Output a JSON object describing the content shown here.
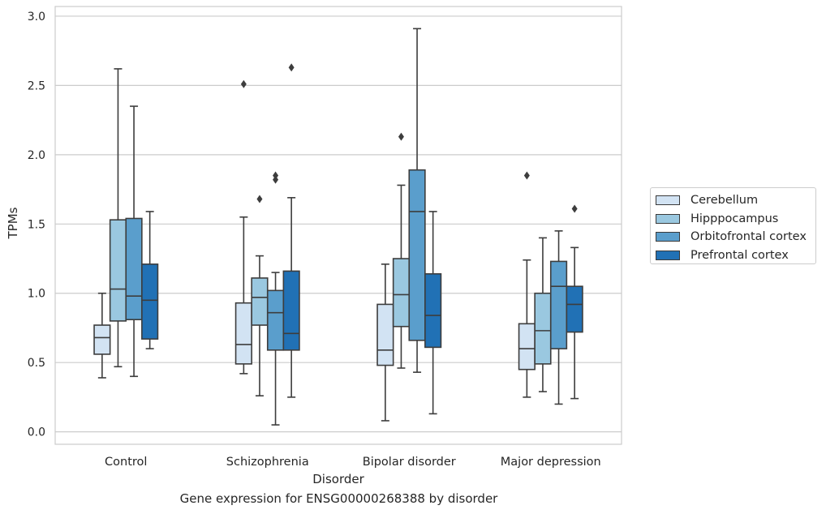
{
  "caption": "Gene expression for ENSG00000268388 by disorder",
  "chart_data": {
    "type": "box",
    "xlabel": "Disorder",
    "ylabel": "TPMs",
    "ylim": [
      -0.09,
      3.07
    ],
    "yticks": [
      0.0,
      0.5,
      1.0,
      1.5,
      2.0,
      2.5,
      3.0
    ],
    "ytick_labels": [
      "0.0",
      "0.5",
      "1.0",
      "1.5",
      "2.0",
      "2.5",
      "3.0"
    ],
    "grid": "horizontal",
    "legend_position": "outside-right",
    "categories": [
      "Control",
      "Schizophrenia",
      "Bipolar disorder",
      "Major depression"
    ],
    "series": [
      {
        "name": "Cerebellum",
        "color": "#d2e3f3",
        "boxes": [
          {
            "whislo": 0.39,
            "q1": 0.56,
            "med": 0.68,
            "q3": 0.77,
            "whishi": 1.0,
            "fliers": []
          },
          {
            "whislo": 0.42,
            "q1": 0.49,
            "med": 0.63,
            "q3": 0.93,
            "whishi": 1.55,
            "fliers": [
              2.51
            ]
          },
          {
            "whislo": 0.08,
            "q1": 0.48,
            "med": 0.59,
            "q3": 0.92,
            "whishi": 1.21,
            "fliers": []
          },
          {
            "whislo": 0.25,
            "q1": 0.45,
            "med": 0.6,
            "q3": 0.78,
            "whishi": 1.24,
            "fliers": [
              1.85
            ]
          }
        ]
      },
      {
        "name": "Hipppocampus",
        "color": "#9ac8e0",
        "boxes": [
          {
            "whislo": 0.47,
            "q1": 0.8,
            "med": 1.03,
            "q3": 1.53,
            "whishi": 2.62,
            "fliers": []
          },
          {
            "whislo": 0.26,
            "q1": 0.77,
            "med": 0.97,
            "q3": 1.11,
            "whishi": 1.27,
            "fliers": [
              1.68
            ]
          },
          {
            "whislo": 0.46,
            "q1": 0.76,
            "med": 0.99,
            "q3": 1.25,
            "whishi": 1.78,
            "fliers": [
              2.13
            ]
          },
          {
            "whislo": 0.29,
            "q1": 0.49,
            "med": 0.73,
            "q3": 1.0,
            "whishi": 1.4,
            "fliers": []
          }
        ]
      },
      {
        "name": "Orbitofrontal cortex",
        "color": "#5a9ecc",
        "boxes": [
          {
            "whislo": 0.4,
            "q1": 0.81,
            "med": 0.98,
            "q3": 1.54,
            "whishi": 2.35,
            "fliers": []
          },
          {
            "whislo": 0.05,
            "q1": 0.59,
            "med": 0.86,
            "q3": 1.02,
            "whishi": 1.15,
            "fliers": [
              1.82,
              1.85
            ]
          },
          {
            "whislo": 0.43,
            "q1": 0.66,
            "med": 1.59,
            "q3": 1.89,
            "whishi": 2.91,
            "fliers": []
          },
          {
            "whislo": 0.2,
            "q1": 0.6,
            "med": 1.05,
            "q3": 1.23,
            "whishi": 1.45,
            "fliers": []
          }
        ]
      },
      {
        "name": "Prefrontal cortex",
        "color": "#2171b5",
        "boxes": [
          {
            "whislo": 0.6,
            "q1": 0.67,
            "med": 0.95,
            "q3": 1.21,
            "whishi": 1.59,
            "fliers": []
          },
          {
            "whislo": 0.25,
            "q1": 0.59,
            "med": 0.71,
            "q3": 1.16,
            "whishi": 1.69,
            "fliers": [
              2.63
            ]
          },
          {
            "whislo": 0.13,
            "q1": 0.61,
            "med": 0.84,
            "q3": 1.14,
            "whishi": 1.59,
            "fliers": []
          },
          {
            "whislo": 0.24,
            "q1": 0.72,
            "med": 0.92,
            "q3": 1.05,
            "whishi": 1.33,
            "fliers": [
              1.61
            ]
          }
        ]
      }
    ]
  }
}
